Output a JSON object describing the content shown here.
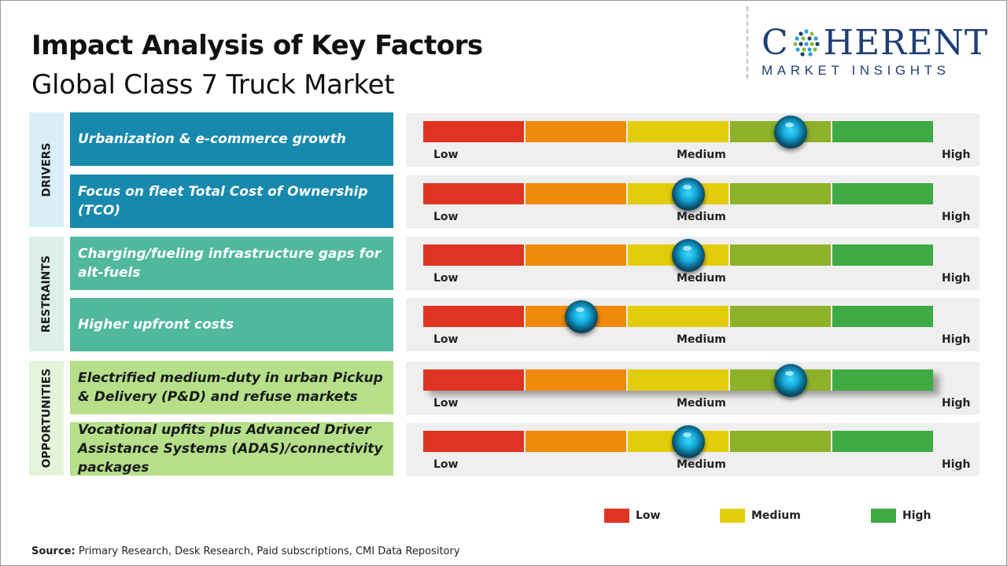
{
  "header": {
    "title": "Impact Analysis of Key Factors",
    "subtitle": "Global Class 7 Truck Market"
  },
  "logo": {
    "name": "COHERENT",
    "tagline": "MARKET INSIGHTS"
  },
  "categories": {
    "drivers": "DRIVERS",
    "restraints": "RESTRAINTS",
    "opportunities": "OPPORTUNITIES"
  },
  "scale_labels": {
    "low": "Low",
    "medium": "Medium",
    "high": "High"
  },
  "scale_colors": [
    "#e03422",
    "#f08a09",
    "#e3cd0b",
    "#8db22a",
    "#3faa43"
  ],
  "marker_color": "#1aa6d8",
  "legend": [
    {
      "label": "Low",
      "color": "#e03422"
    },
    {
      "label": "Medium",
      "color": "#e3cd0b"
    },
    {
      "label": "High",
      "color": "#3faa43"
    }
  ],
  "source": {
    "label": "Source:",
    "text": "Primary Research, Desk Research, Paid subscriptions, CMI Data Repository"
  },
  "chart_data": {
    "type": "table",
    "scale": [
      "Low",
      "Medium",
      "High"
    ],
    "rows": [
      {
        "category": "DRIVERS",
        "factor": "Urbanization & e-commerce growth",
        "impact": 0.72
      },
      {
        "category": "DRIVERS",
        "factor": "Focus on fleet Total Cost of Ownership (TCO)",
        "impact": 0.52
      },
      {
        "category": "RESTRAINTS",
        "factor": "Charging/fueling infrastructure gaps for alt-fuels",
        "impact": 0.52
      },
      {
        "category": "RESTRAINTS",
        "factor": "Higher upfront costs",
        "impact": 0.31
      },
      {
        "category": "OPPORTUNITIES",
        "factor": "Electrified medium-duty in urban Pickup & Delivery (P&D) and refuse markets",
        "impact": 0.72
      },
      {
        "category": "OPPORTUNITIES",
        "factor": "Vocational upfits plus Advanced Driver Assistance Systems (ADAS)/connectivity packages",
        "impact": 0.52
      }
    ]
  }
}
